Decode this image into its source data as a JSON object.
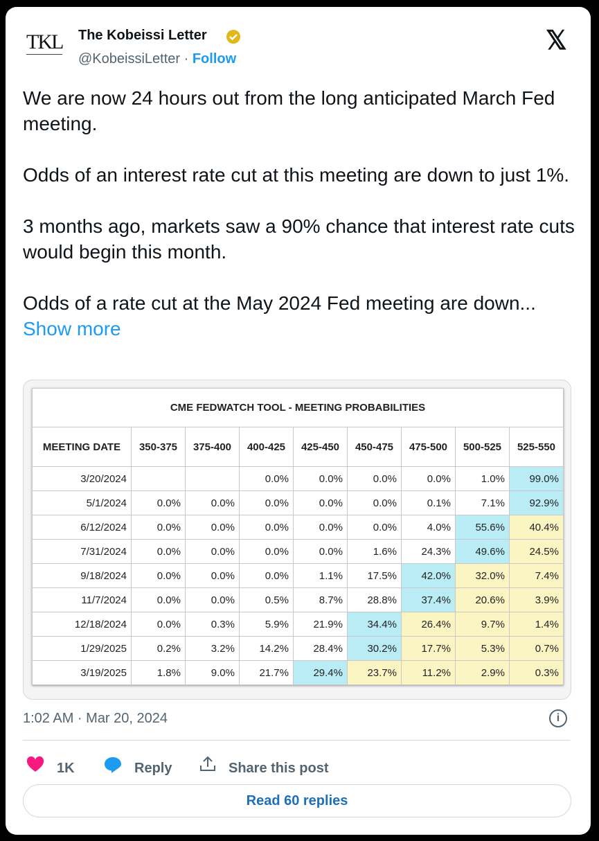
{
  "header": {
    "name": "The Kobeissi Letter",
    "handle": "@KobeissiLetter",
    "follow": "Follow",
    "avatar": "TKL"
  },
  "body": {
    "paragraphs": [
      "We are now 24 hours out from the long anticipated March Fed meeting.",
      "Odds of an interest rate cut at this meeting are down to just 1%.",
      "3 months ago, markets saw a 90% chance that interest rate cuts would begin this month.",
      "Odds of a rate cut at the May 2024 Fed meeting are down..."
    ],
    "show_more": "Show more"
  },
  "table": {
    "title": "CME FEDWATCH TOOL - MEETING PROBABILITIES",
    "headers": [
      "MEETING DATE",
      "350-375",
      "375-400",
      "400-425",
      "425-450",
      "450-475",
      "475-500",
      "500-525",
      "525-550"
    ],
    "rows": [
      [
        "3/20/2024",
        null,
        null,
        "0.0%",
        "0.0%",
        "0.0%",
        "0.0%",
        "1.0%",
        "99.0%"
      ],
      [
        "5/1/2024",
        "0.0%",
        "0.0%",
        "0.0%",
        "0.0%",
        "0.0%",
        "0.1%",
        "7.1%",
        "92.9%"
      ],
      [
        "6/12/2024",
        "0.0%",
        "0.0%",
        "0.0%",
        "0.0%",
        "0.0%",
        "4.0%",
        "55.6%",
        "40.4%"
      ],
      [
        "7/31/2024",
        "0.0%",
        "0.0%",
        "0.0%",
        "0.0%",
        "1.6%",
        "24.3%",
        "49.6%",
        "24.5%"
      ],
      [
        "9/18/2024",
        "0.0%",
        "0.0%",
        "0.0%",
        "1.1%",
        "17.5%",
        "42.0%",
        "32.0%",
        "7.4%"
      ],
      [
        "11/7/2024",
        "0.0%",
        "0.0%",
        "0.5%",
        "8.7%",
        "28.8%",
        "37.4%",
        "20.6%",
        "3.9%"
      ],
      [
        "12/18/2024",
        "0.0%",
        "0.3%",
        "5.9%",
        "21.9%",
        "34.4%",
        "26.4%",
        "9.7%",
        "1.4%"
      ],
      [
        "1/29/2025",
        "0.2%",
        "3.2%",
        "14.2%",
        "28.4%",
        "30.2%",
        "17.7%",
        "5.3%",
        "0.7%"
      ],
      [
        "3/19/2025",
        "1.8%",
        "9.0%",
        "21.7%",
        "29.4%",
        "23.7%",
        "11.2%",
        "2.9%",
        "0.3%"
      ]
    ],
    "highlight_column": [
      8,
      8,
      7,
      7,
      6,
      6,
      5,
      5,
      4
    ],
    "highlight_color": "#b9ecf5",
    "after_color": "#fbf5c4"
  },
  "timestamp": "1:02 AM · Mar 20, 2024",
  "actions": {
    "likes": "1K",
    "reply": "Reply",
    "share": "Share this post"
  },
  "read_replies": "Read 60 replies"
}
